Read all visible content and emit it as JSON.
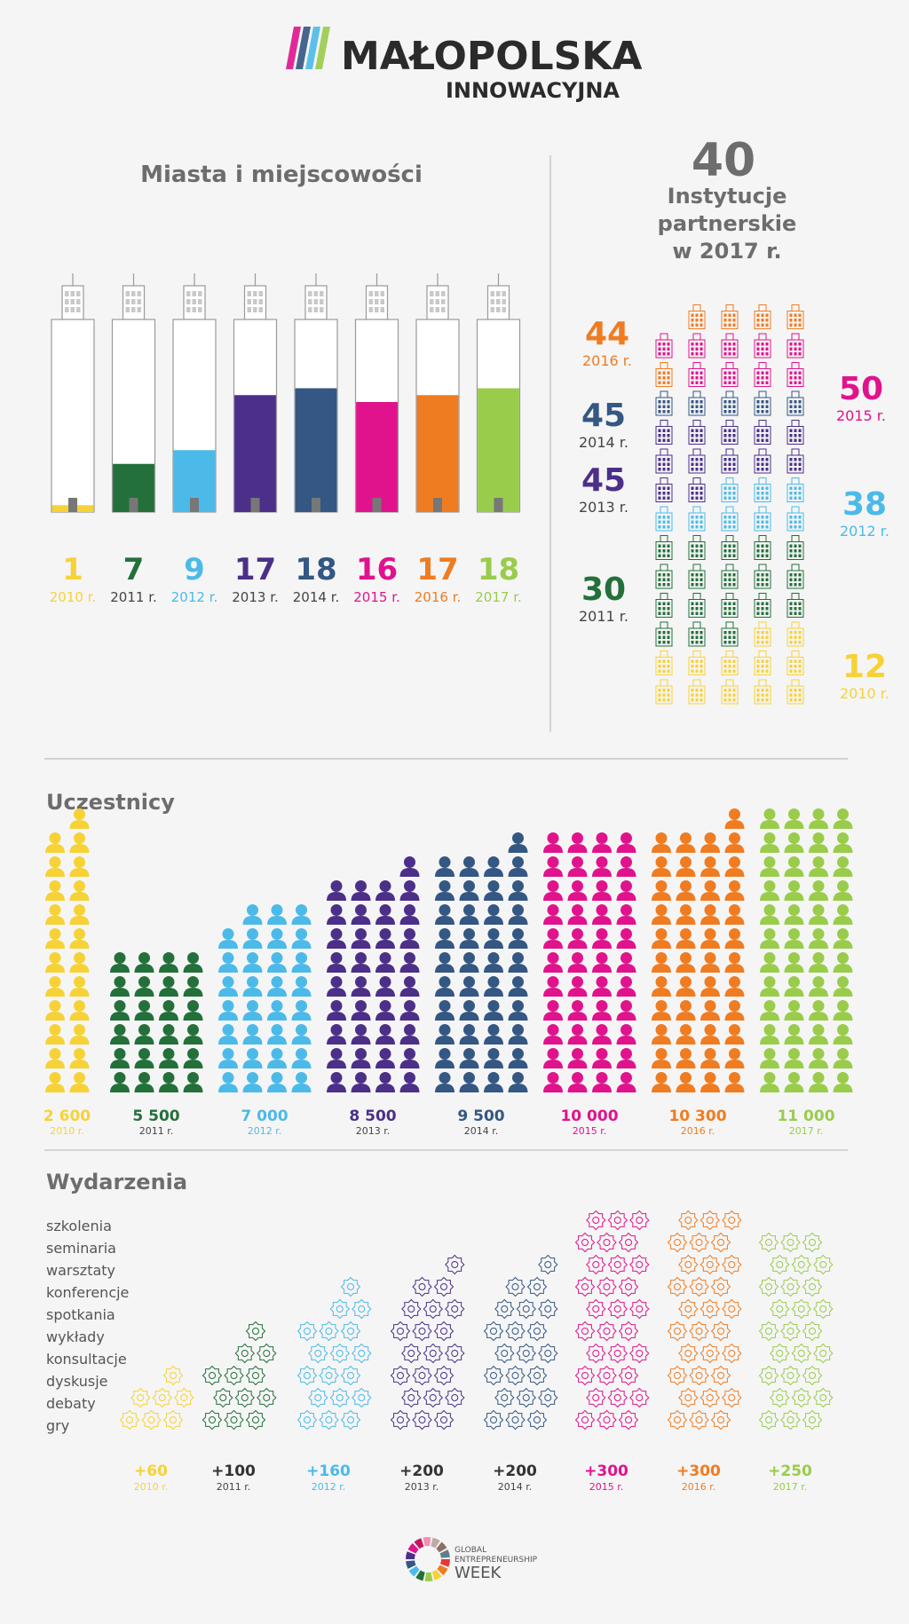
{
  "brand": {
    "title": "MAŁOPOLSKA",
    "subtitle": "INNOWACYJNA"
  },
  "colors": {
    "y2010": "#f6d237",
    "y2011": "#23703a",
    "y2012": "#4cbae9",
    "y2013": "#4b2f89",
    "y2014": "#345783",
    "y2015": "#e0138d",
    "y2016": "#f07c22",
    "y2017": "#9acc4c",
    "gray": "#6d6d6d",
    "line": "#c8c8c8"
  },
  "cities": {
    "title": "Miasta i miejscowości",
    "chart_data": {
      "type": "bar",
      "categories": [
        "2010 r.",
        "2011 r.",
        "2012 r.",
        "2013 r.",
        "2014 r.",
        "2015 r.",
        "2016 r.",
        "2017 r."
      ],
      "values": [
        1,
        7,
        9,
        17,
        18,
        16,
        17,
        18
      ],
      "labels": [
        "1",
        "7",
        "9",
        "17",
        "18",
        "16",
        "17",
        "18"
      ],
      "ylim": [
        0,
        28
      ]
    }
  },
  "institutions": {
    "headline_number": "40",
    "headline_text_1": "Instytucje",
    "headline_text_2": "partnerskie",
    "headline_text_3": "w 2017 r.",
    "chart_data": {
      "type": "bar",
      "categories": [
        "2010 r.",
        "2011 r.",
        "2012 r.",
        "2013 r.",
        "2014 r.",
        "2015 r.",
        "2016 r."
      ],
      "values": [
        12,
        30,
        38,
        45,
        45,
        50,
        44
      ],
      "labels": [
        "12",
        "30",
        "38",
        "45",
        "45",
        "50",
        "44"
      ]
    }
  },
  "participants": {
    "title": "Uczestnicy",
    "chart_data": {
      "type": "bar",
      "categories": [
        "2010 r.",
        "2011 r.",
        "2012 r.",
        "2013 r.",
        "2014 r.",
        "2015 r.",
        "2016 r.",
        "2017 r."
      ],
      "values": [
        2600,
        5500,
        7000,
        8500,
        9500,
        10000,
        10300,
        11000
      ],
      "labels": [
        "2 600",
        "5 500",
        "7 000",
        "8 500",
        "9 500",
        "10 000",
        "10 300",
        "11 000"
      ]
    }
  },
  "events": {
    "title": "Wydarzenia",
    "types": [
      "szkolenia",
      "seminaria",
      "warsztaty",
      "konferencje",
      "spotkania",
      "wykłady",
      "konsultacje",
      "dyskusje",
      "debaty",
      "gry"
    ],
    "chart_data": {
      "type": "bar",
      "categories": [
        "2010 r.",
        "2011 r.",
        "2012 r.",
        "2013 r.",
        "2014 r.",
        "2015 r.",
        "2016 r.",
        "2017 r."
      ],
      "values": [
        60,
        100,
        160,
        200,
        200,
        300,
        300,
        250
      ],
      "labels": [
        "+60",
        "+100",
        "+160",
        "+200",
        "+200",
        "+300",
        "+300",
        "+250"
      ]
    }
  },
  "footer": {
    "line1": "GLOBAL",
    "line2": "ENTREPRENEURSHIP",
    "line3": "WEEK"
  }
}
